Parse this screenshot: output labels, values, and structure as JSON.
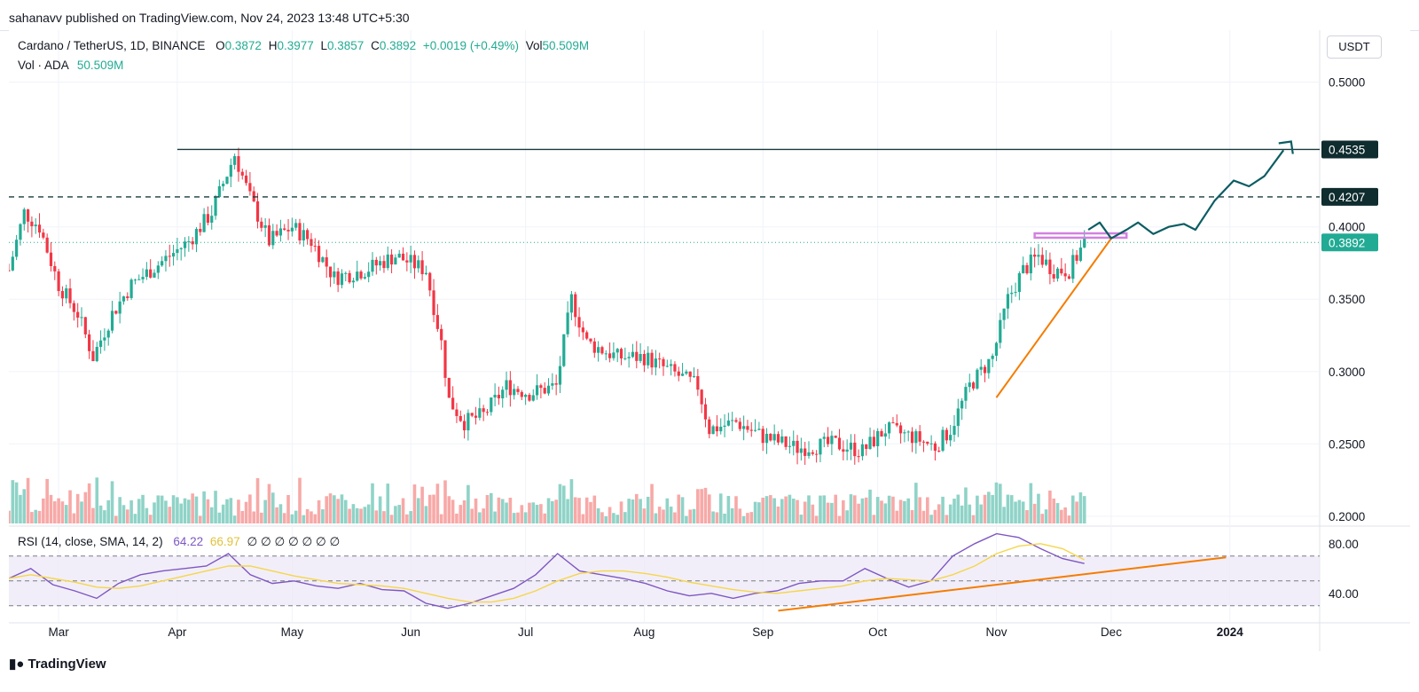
{
  "header": {
    "published": "sahanavv published on TradingView.com, Nov 24, 2023 13:48 UTC+5:30"
  },
  "legend": {
    "symbol": "Cardano / TetherUS, 1D, BINANCE",
    "open_label": "O",
    "open": "0.3872",
    "high_label": "H",
    "high": "0.3977",
    "low_label": "L",
    "low": "0.3857",
    "close_label": "C",
    "close": "0.3892",
    "change": "+0.0019 (+0.49%)",
    "vol_label": "Vol",
    "vol": "50.509M",
    "vol_series": "Vol · ADA",
    "vol_series_value": "50.509M"
  },
  "rsi_legend": {
    "title": "RSI (14, close, SMA, 14, 2)",
    "rsi": "64.22",
    "sma": "66.97",
    "na": "∅ ∅ ∅ ∅ ∅ ∅ ∅"
  },
  "footer": {
    "brand": "TradingView"
  },
  "colors": {
    "up": "#22ab94",
    "down": "#f23645",
    "rsi": "#7e57c2",
    "rsi_sma": "#f5d64a",
    "trend": "#f57c00",
    "projection": "#0b5d63",
    "resistance": "#d381e0"
  },
  "chart_data": [
    {
      "type": "candlestick",
      "title": "Cardano / TetherUS, 1D, BINANCE",
      "currency": "USDT",
      "x_range": [
        "2023-02-16",
        "2024-01-24"
      ],
      "ylim": [
        0.195,
        0.52
      ],
      "y_ticks": [
        "0.5000",
        "0.4000",
        "0.3500",
        "0.3000",
        "0.2500",
        "0.2000"
      ],
      "x_ticks": [
        "Mar",
        "Apr",
        "May",
        "Jun",
        "Jul",
        "Aug",
        "Sep",
        "Oct",
        "Nov",
        "Dec",
        "2024"
      ],
      "ohlc": {
        "open": 0.3872,
        "high": 0.3977,
        "low": 0.3857,
        "close": 0.3892
      },
      "close_points": [
        [
          "2023-02-16",
          0.37
        ],
        [
          "2023-02-20",
          0.41
        ],
        [
          "2023-02-24",
          0.4
        ],
        [
          "2023-03-01",
          0.36
        ],
        [
          "2023-03-06",
          0.34
        ],
        [
          "2023-03-10",
          0.31
        ],
        [
          "2023-03-15",
          0.34
        ],
        [
          "2023-03-20",
          0.36
        ],
        [
          "2023-03-25",
          0.37
        ],
        [
          "2023-03-30",
          0.38
        ],
        [
          "2023-04-04",
          0.39
        ],
        [
          "2023-04-10",
          0.41
        ],
        [
          "2023-04-16",
          0.45
        ],
        [
          "2023-04-20",
          0.42
        ],
        [
          "2023-04-25",
          0.39
        ],
        [
          "2023-05-01",
          0.4
        ],
        [
          "2023-05-06",
          0.39
        ],
        [
          "2023-05-12",
          0.365
        ],
        [
          "2023-05-20",
          0.37
        ],
        [
          "2023-05-28",
          0.38
        ],
        [
          "2023-06-05",
          0.37
        ],
        [
          "2023-06-09",
          0.32
        ],
        [
          "2023-06-11",
          0.28
        ],
        [
          "2023-06-15",
          0.265
        ],
        [
          "2023-06-20",
          0.27
        ],
        [
          "2023-06-26",
          0.29
        ],
        [
          "2023-07-02",
          0.285
        ],
        [
          "2023-07-09",
          0.29
        ],
        [
          "2023-07-13",
          0.35
        ],
        [
          "2023-07-17",
          0.32
        ],
        [
          "2023-07-25",
          0.31
        ],
        [
          "2023-08-01",
          0.31
        ],
        [
          "2023-08-08",
          0.3
        ],
        [
          "2023-08-15",
          0.29
        ],
        [
          "2023-08-18",
          0.26
        ],
        [
          "2023-08-25",
          0.265
        ],
        [
          "2023-09-01",
          0.255
        ],
        [
          "2023-09-10",
          0.247
        ],
        [
          "2023-09-20",
          0.25
        ],
        [
          "2023-09-27",
          0.245
        ],
        [
          "2023-10-03",
          0.26
        ],
        [
          "2023-10-10",
          0.255
        ],
        [
          "2023-10-16",
          0.248
        ],
        [
          "2023-10-20",
          0.26
        ],
        [
          "2023-10-25",
          0.29
        ],
        [
          "2023-10-31",
          0.31
        ],
        [
          "2023-11-04",
          0.35
        ],
        [
          "2023-11-08",
          0.37
        ],
        [
          "2023-11-12",
          0.38
        ],
        [
          "2023-11-16",
          0.37
        ],
        [
          "2023-11-20",
          0.37
        ],
        [
          "2023-11-24",
          0.3892
        ]
      ],
      "horizontal_levels": [
        {
          "value": 0.4535,
          "label": "0.4535",
          "style": "solid"
        },
        {
          "value": 0.4207,
          "label": "0.4207",
          "style": "dashed"
        },
        {
          "value": 0.3892,
          "label": "0.3892",
          "style": "dotted"
        }
      ]
    },
    {
      "type": "line",
      "title": "RSI (14, close, SMA, 14, 2)",
      "ylim": [
        22,
        92
      ],
      "y_ticks": [
        "80.00",
        "40.00"
      ],
      "series": [
        {
          "name": "RSI",
          "values": [
            52,
            60,
            47,
            42,
            36,
            48,
            55,
            58,
            60,
            62,
            72,
            55,
            48,
            50,
            46,
            44,
            48,
            43,
            42,
            32,
            28,
            32,
            38,
            44,
            55,
            72,
            58,
            55,
            52,
            48,
            42,
            38,
            40,
            36,
            40,
            42,
            48,
            50,
            50,
            60,
            52,
            45,
            50,
            70,
            80,
            88,
            85,
            76,
            68,
            64
          ]
        },
        {
          "name": "RSI SMA",
          "values": [
            52,
            55,
            52,
            49,
            45,
            44,
            46,
            50,
            54,
            58,
            62,
            62,
            58,
            54,
            51,
            48,
            47,
            46,
            44,
            40,
            36,
            33,
            33,
            36,
            42,
            50,
            56,
            58,
            58,
            56,
            53,
            49,
            46,
            43,
            41,
            40,
            42,
            44,
            46,
            50,
            52,
            51,
            50,
            55,
            62,
            72,
            78,
            80,
            76,
            67
          ]
        }
      ]
    }
  ]
}
